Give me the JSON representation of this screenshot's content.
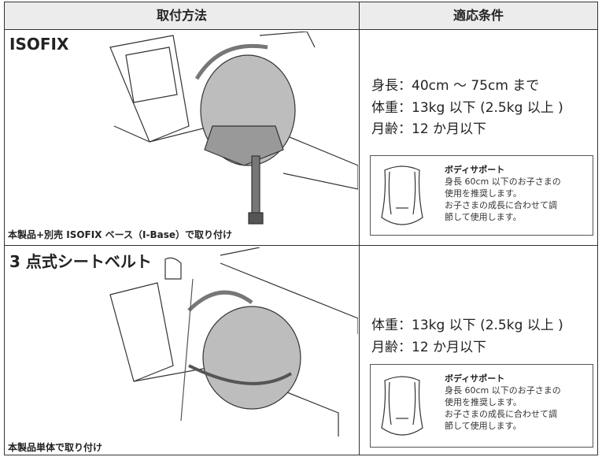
{
  "table": {
    "header": [
      "取付方法",
      "適応条件"
    ],
    "rows": [
      {
        "method": "ISOFIX",
        "caption": "本製品+別売 ISOFIX ベース（I-Base）で取り付け",
        "conditions": [
          "身長：40cm ～ 75cm まで",
          "体重：13kg 以下 (2.5kg 以上 )",
          "月齢：12 か月以下"
        ],
        "note": {
          "title": "ボディサポート",
          "lines": [
            "身長 60cm 以下のお子さまの",
            "使用を推奨します。",
            "お子さまの成長に合わせて調",
            "節して使用します。"
          ]
        }
      },
      {
        "method": "3 点式シートベルト",
        "caption": "本製品単体で取り付け",
        "conditions": [
          "体重：13kg 以下 (2.5kg 以上 )",
          "月齢：12 か月以下"
        ],
        "note": {
          "title": "ボディサポート",
          "lines": [
            "身長 60cm 以下のお子さまの",
            "使用を推奨します。",
            "お子さまの成長に合わせて調",
            "節して使用します。"
          ]
        }
      }
    ]
  }
}
